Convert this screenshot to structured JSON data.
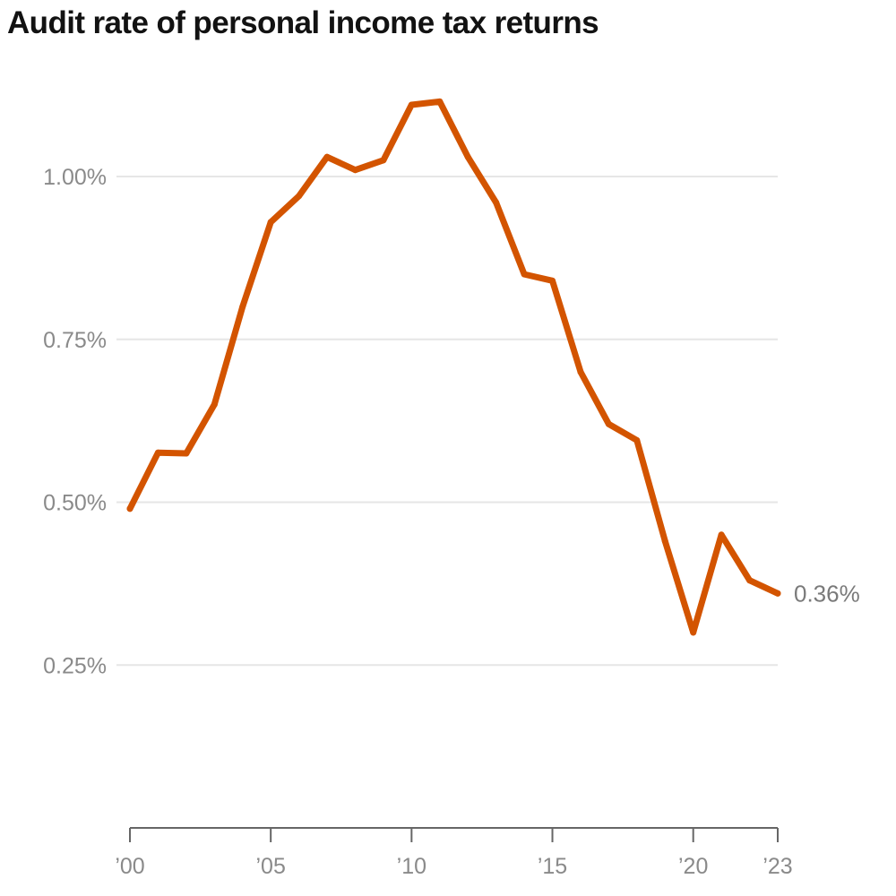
{
  "chart_data": {
    "type": "line",
    "title": "Audit rate of personal income tax returns",
    "xlabel": "",
    "ylabel": "",
    "xlim": [
      2000,
      2023
    ],
    "ylim": [
      0,
      1.15
    ],
    "y_ticks": [
      {
        "value": 0.25,
        "label": "0.25%"
      },
      {
        "value": 0.5,
        "label": "0.50%"
      },
      {
        "value": 0.75,
        "label": "0.75%"
      },
      {
        "value": 1.0,
        "label": "1.00%"
      }
    ],
    "x_ticks": [
      {
        "value": 2000,
        "label": "’00"
      },
      {
        "value": 2005,
        "label": "’05"
      },
      {
        "value": 2010,
        "label": "’10"
      },
      {
        "value": 2015,
        "label": "’15"
      },
      {
        "value": 2020,
        "label": "’20"
      },
      {
        "value": 2023,
        "label": "’23"
      }
    ],
    "grid": true,
    "series": [
      {
        "color": "#d35400",
        "x": [
          2000,
          2001,
          2002,
          2003,
          2004,
          2005,
          2006,
          2007,
          2008,
          2009,
          2010,
          2011,
          2012,
          2013,
          2014,
          2015,
          2016,
          2017,
          2018,
          2019,
          2020,
          2021,
          2022,
          2023
        ],
        "values": [
          0.49,
          0.576,
          0.575,
          0.65,
          0.8,
          0.93,
          0.97,
          1.03,
          1.01,
          1.025,
          1.11,
          1.115,
          1.03,
          0.96,
          0.85,
          0.84,
          0.7,
          0.62,
          0.595,
          0.44,
          0.3,
          0.45,
          0.38,
          0.36
        ]
      }
    ],
    "end_label": "0.36%"
  },
  "colors": {
    "line": "#d35400",
    "grid": "#e6e6e6",
    "axis": "#666666",
    "tick_text": "#8a8a8a"
  }
}
